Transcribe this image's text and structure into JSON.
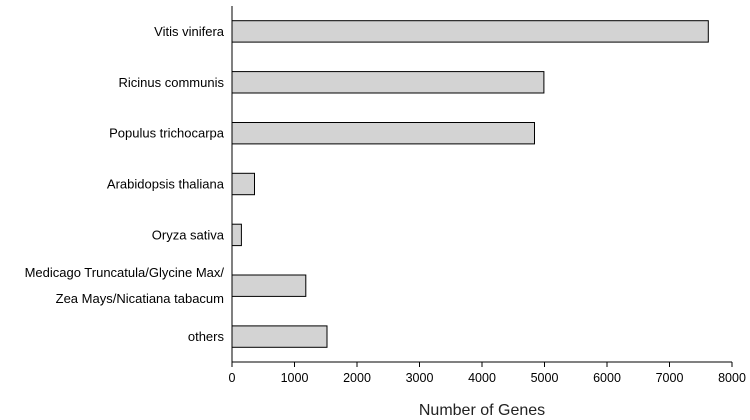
{
  "chart_data": {
    "type": "bar",
    "orientation": "horizontal",
    "title": "",
    "xlabel": "Number of Genes",
    "ylabel": "",
    "xlim": [
      0,
      8000
    ],
    "xticks": [
      0,
      1000,
      2000,
      3000,
      4000,
      5000,
      6000,
      7000,
      8000
    ],
    "grid": false,
    "legend": "none",
    "bar_color": "#d3d3d3",
    "bar_edge_color": "#000000",
    "categories": [
      {
        "label_lines": [
          "Vitis vinifera"
        ],
        "value": 7620
      },
      {
        "label_lines": [
          "Ricinus communis"
        ],
        "value": 4990
      },
      {
        "label_lines": [
          "Populus trichocarpa"
        ],
        "value": 4840
      },
      {
        "label_lines": [
          "Arabidopsis thaliana"
        ],
        "value": 360
      },
      {
        "label_lines": [
          "Oryza sativa"
        ],
        "value": 150
      },
      {
        "label_lines": [
          "Medicago Truncatula/Glycine Max/",
          "Zea Mays/Nicatiana tabacum"
        ],
        "value": 1180
      },
      {
        "label_lines": [
          "others"
        ],
        "value": 1520
      }
    ]
  }
}
